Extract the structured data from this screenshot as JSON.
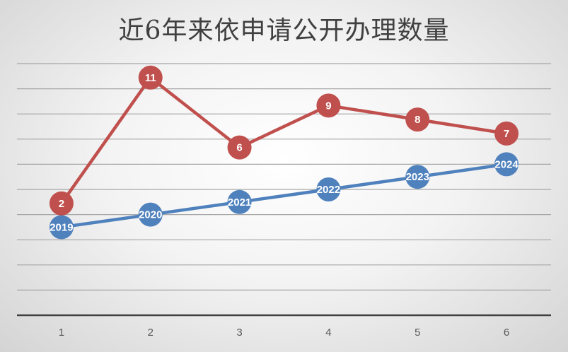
{
  "chart_data": {
    "type": "line",
    "title": "近6年来依申请公开办理数量",
    "categories": [
      "1",
      "2",
      "3",
      "4",
      "5",
      "6"
    ],
    "grid": true,
    "legend": "none",
    "series": [
      {
        "values": [
          2019,
          2020,
          2021,
          2022,
          2023,
          2024
        ],
        "color": "#4f81bd",
        "axis": "secondary",
        "ylim": [
          2012,
          2032
        ]
      },
      {
        "values": [
          2,
          11,
          6,
          9,
          8,
          7
        ],
        "color": "#c0504d",
        "axis": "primary",
        "ylim": [
          -6,
          12
        ]
      }
    ]
  }
}
